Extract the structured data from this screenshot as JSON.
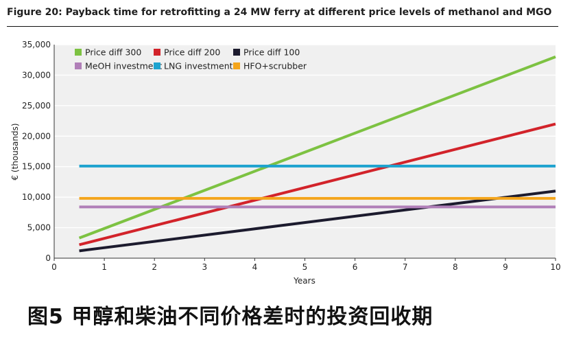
{
  "figure": {
    "title": "Figure 20: Payback time for retrofitting a 24 MW ferry at different price levels of methanol and MGO",
    "caption_cn": "图5    甲醇和柴油不同价格差时的投资回收期"
  },
  "chart_data": {
    "type": "line",
    "xlabel": "Years",
    "ylabel": "€ (thousands)",
    "xlim": [
      0,
      10
    ],
    "ylim": [
      0,
      35000
    ],
    "x_ticks": [
      0,
      1,
      2,
      3,
      4,
      5,
      6,
      7,
      8,
      9,
      10
    ],
    "y_ticks": [
      0,
      5000,
      10000,
      15000,
      20000,
      25000,
      30000,
      35000
    ],
    "y_tick_labels": [
      "0",
      "5,000",
      "10,000",
      "15,000",
      "20,000",
      "25,000",
      "30,000",
      "35,000"
    ],
    "grid": "horizontal",
    "legend_position": "top-left",
    "series": [
      {
        "name": "Price diff 300",
        "color": "#7dc242",
        "x": [
          0.5,
          10
        ],
        "y": [
          3300,
          33000
        ]
      },
      {
        "name": "Price diff 200",
        "color": "#d2232a",
        "x": [
          0.5,
          10
        ],
        "y": [
          2200,
          22000
        ]
      },
      {
        "name": "Price diff 100",
        "color": "#1c1b2e",
        "x": [
          0.5,
          10
        ],
        "y": [
          1200,
          11000
        ]
      },
      {
        "name": "MeOH investment",
        "color": "#b07fb8",
        "x": [
          0.5,
          10
        ],
        "y": [
          8400,
          8400
        ]
      },
      {
        "name": "LNG investment",
        "color": "#1ea3cf",
        "x": [
          0.5,
          10
        ],
        "y": [
          15100,
          15100
        ]
      },
      {
        "name": "HFO+scrubber",
        "color": "#f4a51c",
        "x": [
          0.5,
          10
        ],
        "y": [
          9800,
          9800
        ]
      }
    ]
  }
}
